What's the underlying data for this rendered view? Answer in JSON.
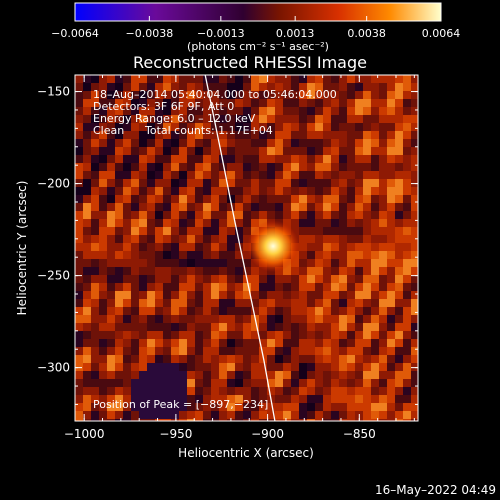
{
  "chart_data": {
    "type": "heatmap",
    "title": "Reconstructed RHESSI Image",
    "xlabel": "Heliocentric X (arcsec)",
    "ylabel": "Heliocentric Y (arcsec)",
    "xlim": [
      -1005,
      -818
    ],
    "ylim": [
      -329,
      -141
    ],
    "x_ticks": [
      -1000,
      -950,
      -900,
      -850
    ],
    "x_tick_labels": [
      "−1000",
      "−950",
      "−900",
      "−850"
    ],
    "y_ticks": [
      -150,
      -200,
      -250,
      -300
    ],
    "y_tick_labels": [
      "−150",
      "−200",
      "−250",
      "−300"
    ],
    "peak": {
      "x": -897,
      "y": -234
    },
    "limb_points": [
      [
        -934,
        -141
      ],
      [
        -926,
        -180
      ],
      [
        -918,
        -220
      ],
      [
        -910,
        -258
      ],
      [
        -902,
        -296
      ],
      [
        -896,
        -329
      ]
    ],
    "colorbar": {
      "range": [
        -0.0064,
        0.0064
      ],
      "ticks": [
        -0.0064,
        -0.0038,
        -0.0013,
        0.0013,
        0.0038,
        0.0064
      ],
      "tick_labels": [
        "−0.0064",
        "−0.0038",
        "−0.0013",
        "0.0013",
        "0.0038",
        "0.0064"
      ],
      "unit_label": "(photons cm⁻² s⁻¹ asec⁻²)",
      "colors": [
        "#0000ff",
        "#6a0a9a",
        "#300030",
        "#7a1500",
        "#d83000",
        "#ff8a00",
        "#ffffcc"
      ]
    },
    "annotations": {
      "time_range": "18–Aug–2014 05:40:04.000 to 05:46:04.000",
      "detectors": "Detectors: 3F 6F 9F, Att 0",
      "energy_range": "Energy Range: 6.0 – 12.0 keV",
      "clean": "Clean",
      "total_counts": "Total counts: 1.17E+04",
      "position_of_peak": "Position of Peak = [−897,−234]"
    }
  },
  "footer": {
    "timestamp": "16–May–2022 04:49"
  },
  "colors": {
    "background": "#000000",
    "foreground": "#ffffff"
  }
}
